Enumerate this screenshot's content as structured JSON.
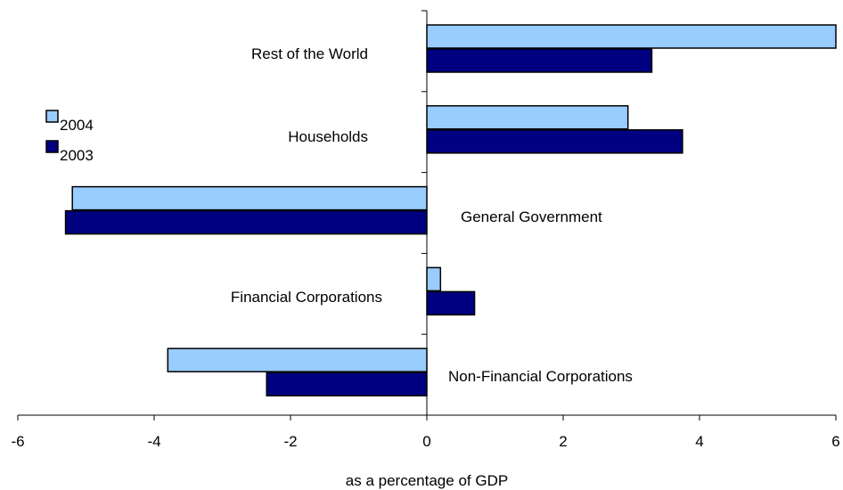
{
  "chart_data": {
    "type": "bar",
    "orientation": "horizontal",
    "categories": [
      "Rest of the World",
      "Households",
      "General Government",
      "Financial Corporations",
      "Non-Financial Corporations"
    ],
    "series": [
      {
        "name": "2004",
        "color": "#99ccff",
        "values": [
          6.0,
          2.95,
          -5.2,
          0.2,
          -3.8
        ]
      },
      {
        "name": "2003",
        "color": "#000080",
        "values": [
          3.3,
          3.75,
          -5.3,
          0.7,
          -2.35
        ]
      }
    ],
    "xlim": [
      -6,
      6
    ],
    "xticks": [
      "-6",
      "-4",
      "-2",
      "0",
      "2",
      "4",
      "6"
    ],
    "xlabel": "as a percentage of GDP",
    "ylabel": "",
    "title": "",
    "grid": false,
    "legend_position": "left"
  }
}
